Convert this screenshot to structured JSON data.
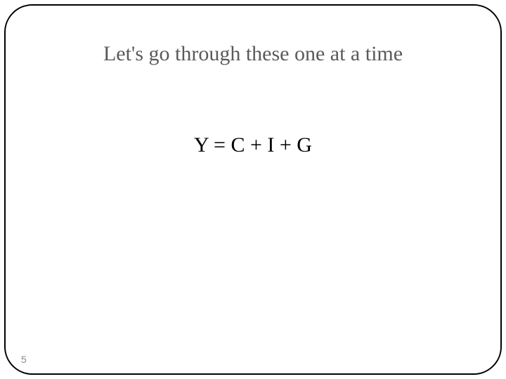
{
  "slide": {
    "title": "Let's go through these one at a time",
    "equation": "Y = C + I + G",
    "page_number": "5",
    "title_color": "#5a5a5a",
    "title_fontsize": 30,
    "equation_color": "#000000",
    "equation_fontsize": 30,
    "border_color": "#000000",
    "border_radius": 40,
    "background_color": "#ffffff",
    "page_number_color": "#888888",
    "page_number_fontsize": 14
  }
}
